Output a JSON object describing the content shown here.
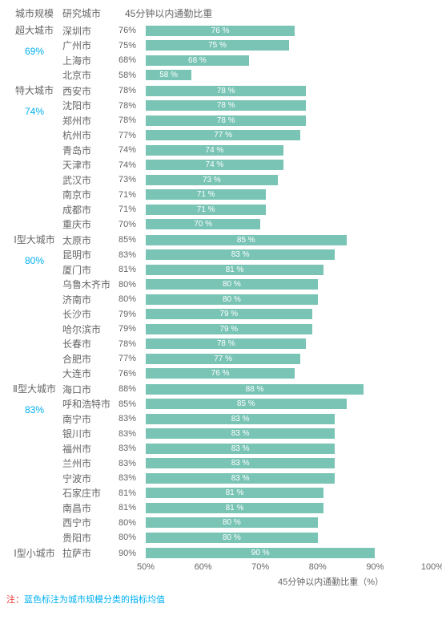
{
  "header": {
    "col_scale": "城市规模",
    "col_city": "研究城市",
    "col_metric": "45分钟以内通勤比重"
  },
  "chart": {
    "type": "bar",
    "xlim": [
      50,
      100
    ],
    "ticks": [
      50,
      60,
      70,
      80,
      90,
      100
    ],
    "tick_suffix": "%",
    "bar_color": "#79c4b5",
    "bar_text_color": "#ffffff",
    "axis_title": "45分钟以内通勤比重（%）"
  },
  "groups": [
    {
      "scale_label": "超大城市",
      "avg_label": "69%",
      "rows": [
        {
          "city": "深圳市",
          "pct": 76
        },
        {
          "city": "广州市",
          "pct": 75
        },
        {
          "city": "上海市",
          "pct": 68
        },
        {
          "city": "北京市",
          "pct": 58
        }
      ]
    },
    {
      "scale_label": "特大城市",
      "avg_label": "74%",
      "rows": [
        {
          "city": "西安市",
          "pct": 78
        },
        {
          "city": "沈阳市",
          "pct": 78
        },
        {
          "city": "郑州市",
          "pct": 78
        },
        {
          "city": "杭州市",
          "pct": 77
        },
        {
          "city": "青岛市",
          "pct": 74
        },
        {
          "city": "天津市",
          "pct": 74
        },
        {
          "city": "武汉市",
          "pct": 73
        },
        {
          "city": "南京市",
          "pct": 71
        },
        {
          "city": "成都市",
          "pct": 71
        },
        {
          "city": "重庆市",
          "pct": 70
        }
      ]
    },
    {
      "scale_label": "Ⅰ型大城市",
      "avg_label": "80%",
      "rows": [
        {
          "city": "太原市",
          "pct": 85
        },
        {
          "city": "昆明市",
          "pct": 83
        },
        {
          "city": "厦门市",
          "pct": 81
        },
        {
          "city": "乌鲁木齐市",
          "pct": 80
        },
        {
          "city": "济南市",
          "pct": 80
        },
        {
          "city": "长沙市",
          "pct": 79
        },
        {
          "city": "哈尔滨市",
          "pct": 79
        },
        {
          "city": "长春市",
          "pct": 78
        },
        {
          "city": "合肥市",
          "pct": 77
        },
        {
          "city": "大连市",
          "pct": 76
        }
      ]
    },
    {
      "scale_label": "Ⅱ型大城市",
      "avg_label": "83%",
      "rows": [
        {
          "city": "海口市",
          "pct": 88
        },
        {
          "city": "呼和浩特市",
          "pct": 85
        },
        {
          "city": "南宁市",
          "pct": 83
        },
        {
          "city": "银川市",
          "pct": 83
        },
        {
          "city": "福州市",
          "pct": 83
        },
        {
          "city": "兰州市",
          "pct": 83
        },
        {
          "city": "宁波市",
          "pct": 83
        },
        {
          "city": "石家庄市",
          "pct": 81
        },
        {
          "city": "南昌市",
          "pct": 81
        },
        {
          "city": "西宁市",
          "pct": 80
        },
        {
          "city": "贵阳市",
          "pct": 80
        }
      ]
    },
    {
      "scale_label": "Ⅰ型小城市",
      "avg_label": "",
      "rows": [
        {
          "city": "拉萨市",
          "pct": 90
        }
      ]
    }
  ],
  "footnote": {
    "prefix": "注：",
    "text": "蓝色标注为城市规模分类的指标均值"
  }
}
